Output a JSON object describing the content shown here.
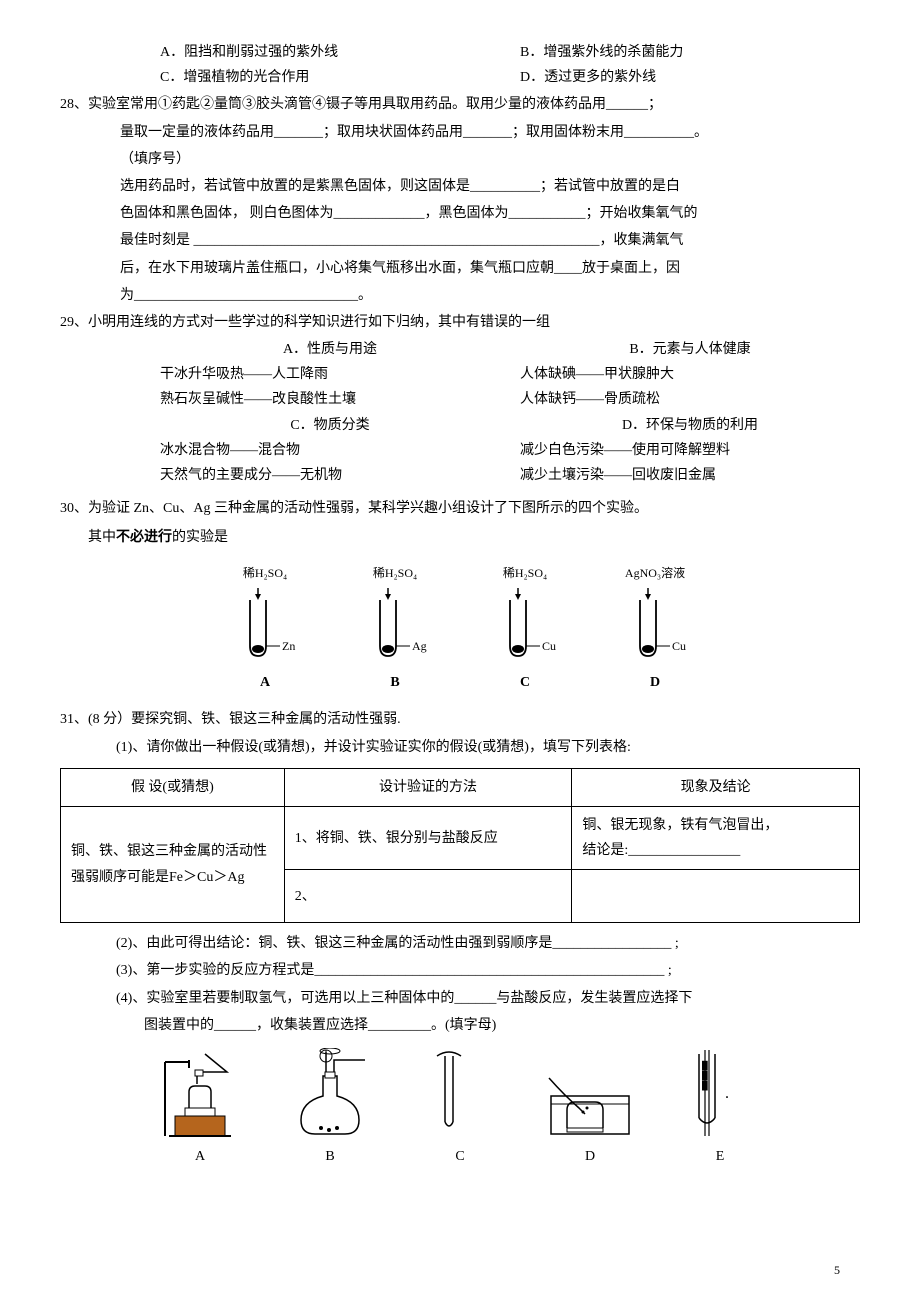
{
  "q27": {
    "optA": "A．阻挡和削弱过强的紫外线",
    "optB": "B．增强紫外线的杀菌能力",
    "optC": "C．增强植物的光合作用",
    "optD": "D．透过更多的紫外线"
  },
  "q28": {
    "line1": "28、实验室常用①药匙②量筒③胶头滴管④镊子等用具取用药品。取用少量的液体药品用______；",
    "line2": "量取一定量的液体药品用_______；取用块状固体药品用_______；取用固体粉末用__________。",
    "line3": "（填序号）",
    "line4": "选用药品时，若试管中放置的是紫黑色固体，则这固体是__________；若试管中放置的是白",
    "line5": "色固体和黑色固体， 则白色图体为_____________，黑色固体为___________；开始收集氧气的",
    "line6": "最佳时刻是 __________________________________________________________，收集满氧气",
    "line7": "后，在水下用玻璃片盖住瓶口，小心将集气瓶移出水面，集气瓶口应朝____放于桌面上，因",
    "line8": "为________________________________。"
  },
  "q29": {
    "stem": "29、小明用连线的方式对一些学过的科学知识进行如下归纳，其中有错误的一组",
    "A_title": "A．性质与用途",
    "A_1": "干冰升华吸热——人工降雨",
    "A_2": "熟石灰呈碱性——改良酸性土壤",
    "B_title": "B．元素与人体健康",
    "B_1": "人体缺碘——甲状腺肿大",
    "B_2": "人体缺钙——骨质疏松",
    "C_title": "C．物质分类",
    "C_1": "冰水混合物——混合物",
    "C_2": "天然气的主要成分——无机物",
    "D_title": "D．环保与物质的利用",
    "D_1": "减少白色污染——使用可降解塑料",
    "D_2": "减少土壤污染——回收废旧金属"
  },
  "q30": {
    "line1": "30、为验证 Zn、Cu、Ag 三种金属的活动性强弱，某科学兴趣小组设计了下图所示的四个实验。",
    "line2": "其中不必进行的实验是",
    "tubes": [
      {
        "top": "稀H₂SO₄",
        "side": "Zn",
        "letter": "A"
      },
      {
        "top": "稀H₂SO₄",
        "side": "Ag",
        "letter": "B"
      },
      {
        "top": "稀H₂SO₄",
        "side": "Cu",
        "letter": "C"
      },
      {
        "top": "AgNO₃溶液",
        "side": "Cu",
        "letter": "D"
      }
    ]
  },
  "q31": {
    "stem": "31、(8 分）要探究铜、铁、银这三种金属的活动性强弱.",
    "sub1": "(1)、请你做出一种假设(或猜想)，并设计实验证实你的假设(或猜想)，填写下列表格:",
    "th1": "假 设(或猜想)",
    "th2": "设计验证的方法",
    "th3": "现象及结论",
    "c1": "铜、铁、银这三种金属的活动性强弱顺序可能是Fe＞Cu＞Ag",
    "c2a": "1、将铜、铁、银分别与盐酸反应",
    "c2b": "2、",
    "c3a": "铜、银无现象，铁有气泡冒出，",
    "c3b": "结论是:________________",
    "sub2": "(2)、由此可得出结论：铜、铁、银这三种金属的活动性由强到弱顺序是_________________  ;",
    "sub3": "(3)、第一步实验的反应方程式是__________________________________________________ ;",
    "sub4": "(4)、实验室里若要制取氢气，可选用以上三种固体中的______与盐酸反应，发生装置应选择下",
    "sub4b": "图装置中的______，收集装置应选择_________。(填字母)",
    "devices": [
      "A",
      "B",
      "C",
      "D",
      "E"
    ]
  },
  "pageNum": "5",
  "colors": {
    "brown": "#b5651d"
  }
}
